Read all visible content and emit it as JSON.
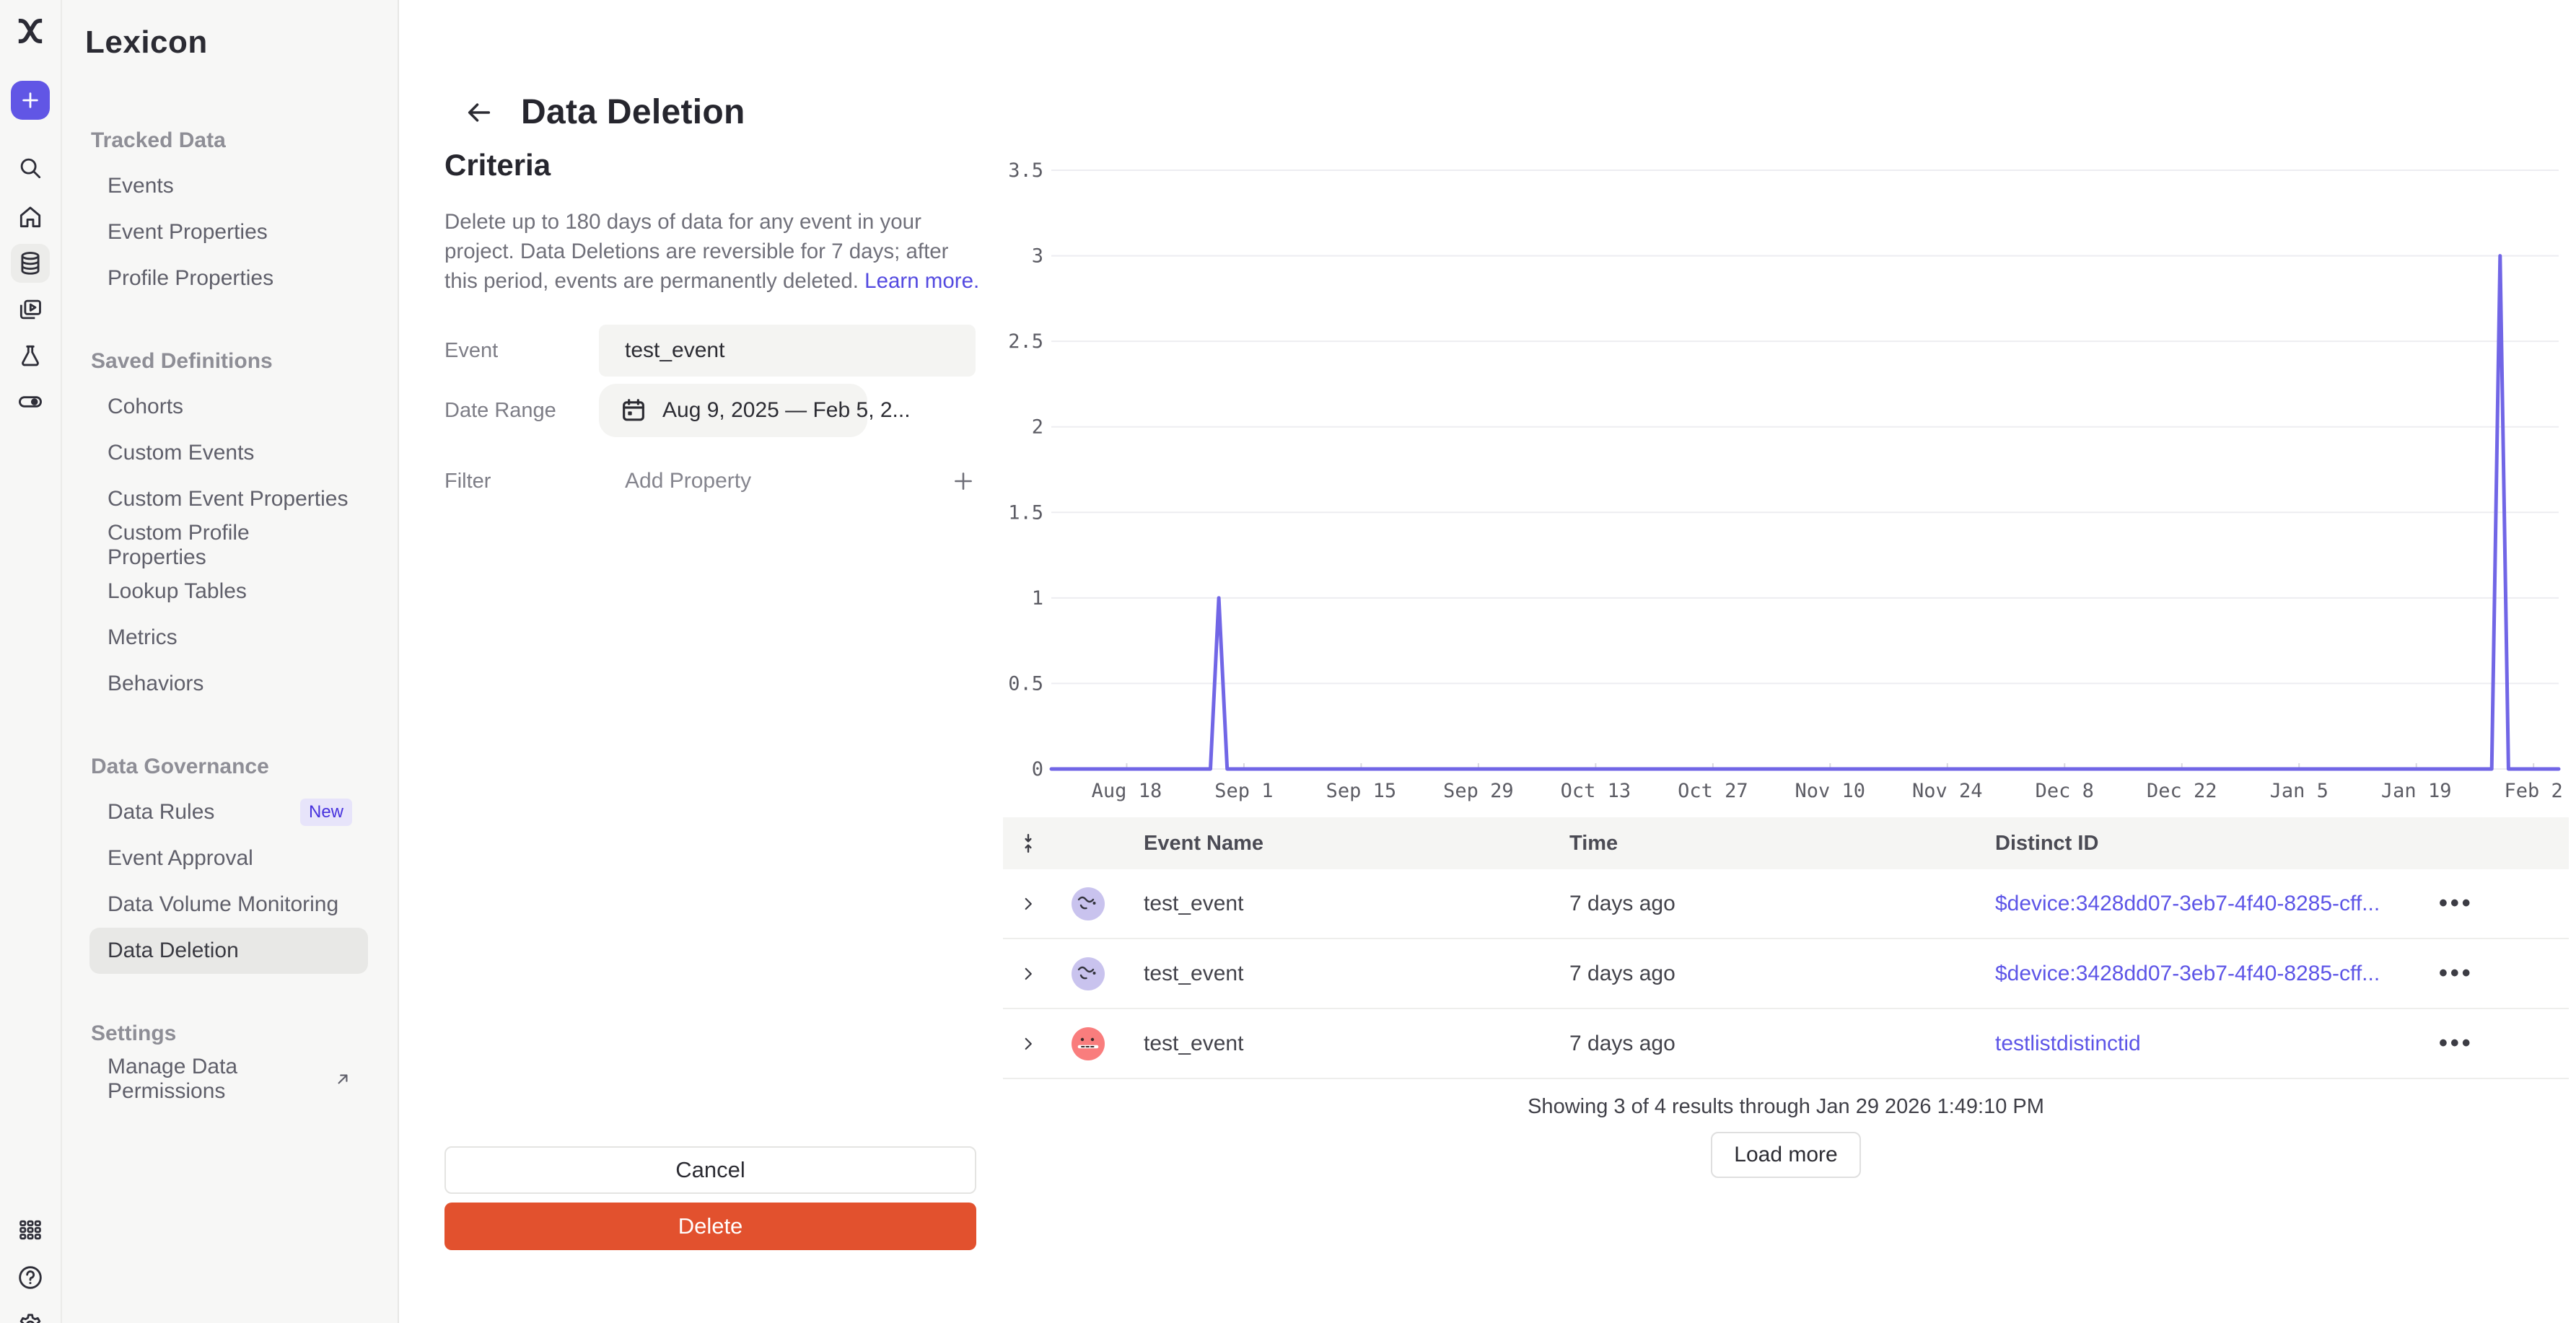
{
  "app": {
    "product": "Mixpanel",
    "sidebar_title": "Lexicon"
  },
  "rail": {
    "icons": [
      "mixpanel-logo",
      "create-plus",
      "search",
      "home",
      "data-catalog-selected",
      "boards",
      "experiments",
      "feature-flags",
      "apps-grid",
      "help",
      "settings"
    ]
  },
  "sidebar": {
    "title": "Lexicon",
    "sections": [
      {
        "heading": "Tracked Data",
        "items": [
          {
            "label": "Events"
          },
          {
            "label": "Event Properties"
          },
          {
            "label": "Profile Properties"
          }
        ]
      },
      {
        "heading": "Saved Definitions",
        "items": [
          {
            "label": "Cohorts"
          },
          {
            "label": "Custom Events"
          },
          {
            "label": "Custom Event Properties"
          },
          {
            "label": "Custom Profile Properties"
          },
          {
            "label": "Lookup Tables"
          },
          {
            "label": "Metrics"
          },
          {
            "label": "Behaviors"
          }
        ]
      },
      {
        "heading": "Data Governance",
        "items": [
          {
            "label": "Data Rules",
            "badge": "New"
          },
          {
            "label": "Event Approval"
          },
          {
            "label": "Data Volume Monitoring"
          },
          {
            "label": "Data Deletion",
            "selected": true
          }
        ]
      },
      {
        "heading": "Settings",
        "items": [
          {
            "label": "Manage Data Permissions",
            "external": true
          }
        ]
      }
    ]
  },
  "header": {
    "title": "Data Deletion"
  },
  "criteria": {
    "heading": "Criteria",
    "description": "Delete up to 180 days of data for any event in your project. Data Deletions are reversible for 7 days; after this period, events are permanently deleted. ",
    "learn_more_label": "Learn more.",
    "fields": {
      "event_label": "Event",
      "event_value": "test_event",
      "date_range_label": "Date Range",
      "date_range_value": "Aug 9, 2025 — Feb 5, 2...",
      "filter_label": "Filter",
      "filter_placeholder": "Add Property"
    },
    "cancel_label": "Cancel",
    "delete_label": "Delete"
  },
  "chart_data": {
    "type": "line",
    "title": "",
    "xlabel": "",
    "ylabel": "",
    "grid": true,
    "legend": false,
    "x_range": [
      "Aug 9, 2025",
      "Feb 5, 2026"
    ],
    "x_range_days": 180,
    "ylim": [
      0,
      3.5
    ],
    "y_ticks": [
      {
        "label": "0",
        "value": 0
      },
      {
        "label": "0.5",
        "value": 0.5
      },
      {
        "label": "1",
        "value": 1
      },
      {
        "label": "1.5",
        "value": 1.5
      },
      {
        "label": "2",
        "value": 2
      },
      {
        "label": "2.5",
        "value": 2.5
      },
      {
        "label": "3",
        "value": 3
      },
      {
        "label": "3.5",
        "value": 3.5
      }
    ],
    "x_ticks": [
      {
        "label": "Aug 18",
        "day": 9
      },
      {
        "label": "Sep 1",
        "day": 23
      },
      {
        "label": "Sep 15",
        "day": 37
      },
      {
        "label": "Sep 29",
        "day": 51
      },
      {
        "label": "Oct 13",
        "day": 65
      },
      {
        "label": "Oct 27",
        "day": 79
      },
      {
        "label": "Nov 10",
        "day": 93
      },
      {
        "label": "Nov 24",
        "day": 107
      },
      {
        "label": "Dec 8",
        "day": 121
      },
      {
        "label": "Dec 22",
        "day": 135
      },
      {
        "label": "Jan 5",
        "day": 149
      },
      {
        "label": "Jan 19",
        "day": 163
      },
      {
        "label": "Feb 2",
        "day": 177
      }
    ],
    "series": [
      {
        "name": "test_event",
        "color": "#7166e6",
        "points": [
          {
            "day": 0,
            "value": 0
          },
          {
            "day": 19,
            "value": 0
          },
          {
            "day": 20,
            "value": 1
          },
          {
            "day": 21,
            "value": 0
          },
          {
            "day": 172,
            "value": 0
          },
          {
            "day": 173,
            "value": 3
          },
          {
            "day": 174,
            "value": 0
          },
          {
            "day": 180,
            "value": 0
          }
        ]
      }
    ],
    "annotations": [
      {
        "date": "Aug 29, 2025",
        "value": 1
      },
      {
        "date": "Jan 29, 2026",
        "value": 3
      }
    ]
  },
  "results_table": {
    "columns": {
      "event_name": "Event Name",
      "time": "Time",
      "distinct_id": "Distinct ID"
    },
    "rows": [
      {
        "event_name": "test_event",
        "time": "7 days ago",
        "distinct_id": "$device:3428dd07-3eb7-4f40-8285-cff...",
        "avatar": "purple-face"
      },
      {
        "event_name": "test_event",
        "time": "7 days ago",
        "distinct_id": "$device:3428dd07-3eb7-4f40-8285-cff...",
        "avatar": "purple-face"
      },
      {
        "event_name": "test_event",
        "time": "7 days ago",
        "distinct_id": "testlistdistinctid",
        "avatar": "red-face"
      }
    ],
    "status": "Showing 3 of 4 results through Jan 29 2026 1:49:10 PM",
    "load_more_label": "Load more",
    "menu_glyph": "•••"
  },
  "colors": {
    "accent_purple": "#6156e5",
    "link_purple": "#5349e0",
    "chart_line": "#7166e6",
    "gridline": "#ededf1",
    "delete_red": "#e2512e",
    "sidebar_bg": "#f7f7f6",
    "selected_item_bg": "#e8e8e6",
    "table_header_bg": "#f5f5f3",
    "avatar_purple": "#c9c3ee",
    "avatar_red": "#f97d7d",
    "badge_bg": "#e7e4fa",
    "badge_text": "#4732dd"
  }
}
